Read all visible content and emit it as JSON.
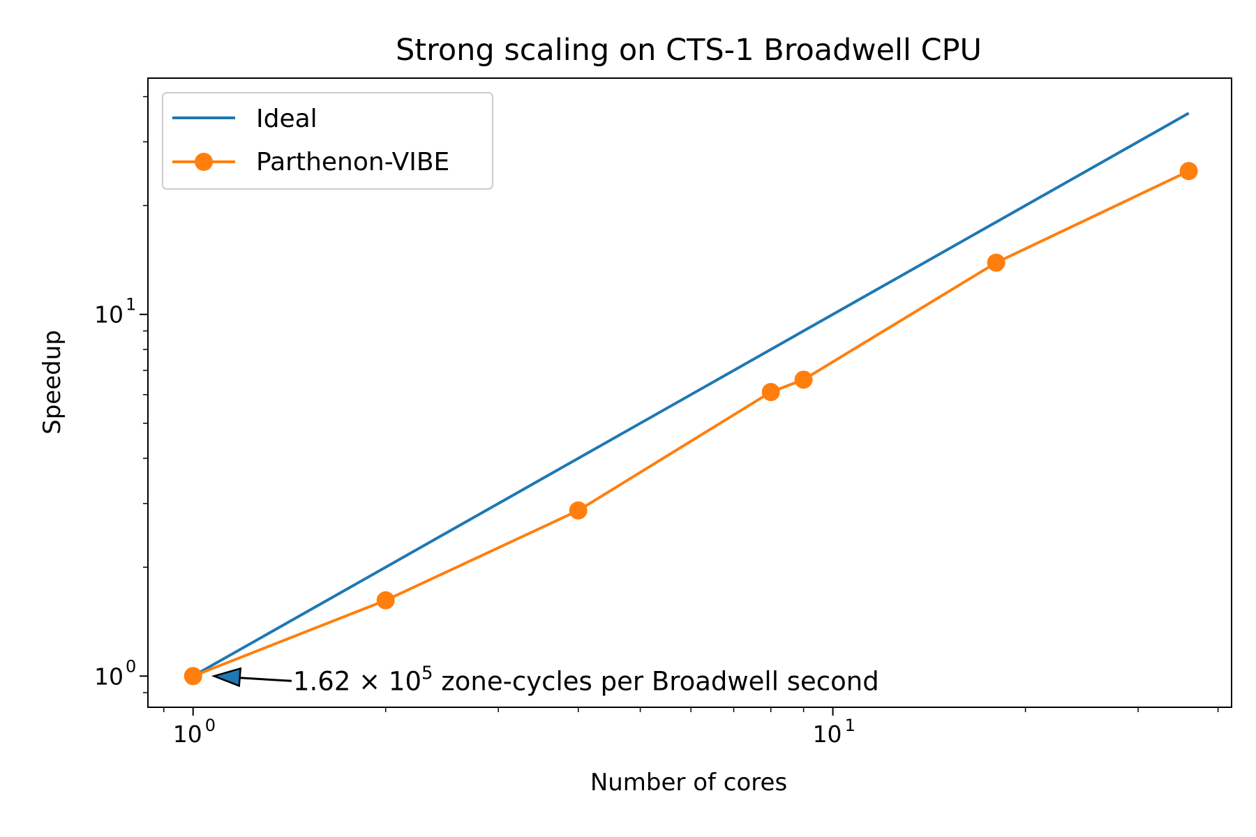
{
  "chart_data": {
    "type": "line",
    "title": "Strong scaling on CTS-1 Broadwell CPU",
    "xlabel": "Number of cores",
    "ylabel": "Speedup",
    "x_scale": "log",
    "y_scale": "log",
    "xlim": [
      0.85,
      42
    ],
    "ylim": [
      0.82,
      45
    ],
    "x_ticks": [
      {
        "value": 1,
        "base": "10",
        "exp": "0"
      },
      {
        "value": 10,
        "base": "10",
        "exp": "1"
      }
    ],
    "y_ticks": [
      {
        "value": 1,
        "base": "10",
        "exp": "0"
      },
      {
        "value": 10,
        "base": "10",
        "exp": "1"
      }
    ],
    "grid": false,
    "legend_position": "top-left",
    "series": [
      {
        "name": "Ideal",
        "color": "#1f77b4",
        "marker": "none",
        "x": [
          1,
          36
        ],
        "y": [
          1,
          36
        ]
      },
      {
        "name": "Parthenon-VIBE",
        "color": "#ff7f0e",
        "marker": "circle",
        "x": [
          1,
          2,
          4,
          8,
          9,
          18,
          36
        ],
        "y": [
          1.0,
          1.62,
          2.87,
          6.1,
          6.6,
          13.9,
          24.9
        ]
      }
    ],
    "annotation": {
      "text_prefix": "1.62",
      "times": "×",
      "base": "10",
      "exp": "5",
      "text_suffix": " zone-cycles per Broadwell second",
      "arrow_target": {
        "x": 1,
        "y": 1
      }
    }
  }
}
